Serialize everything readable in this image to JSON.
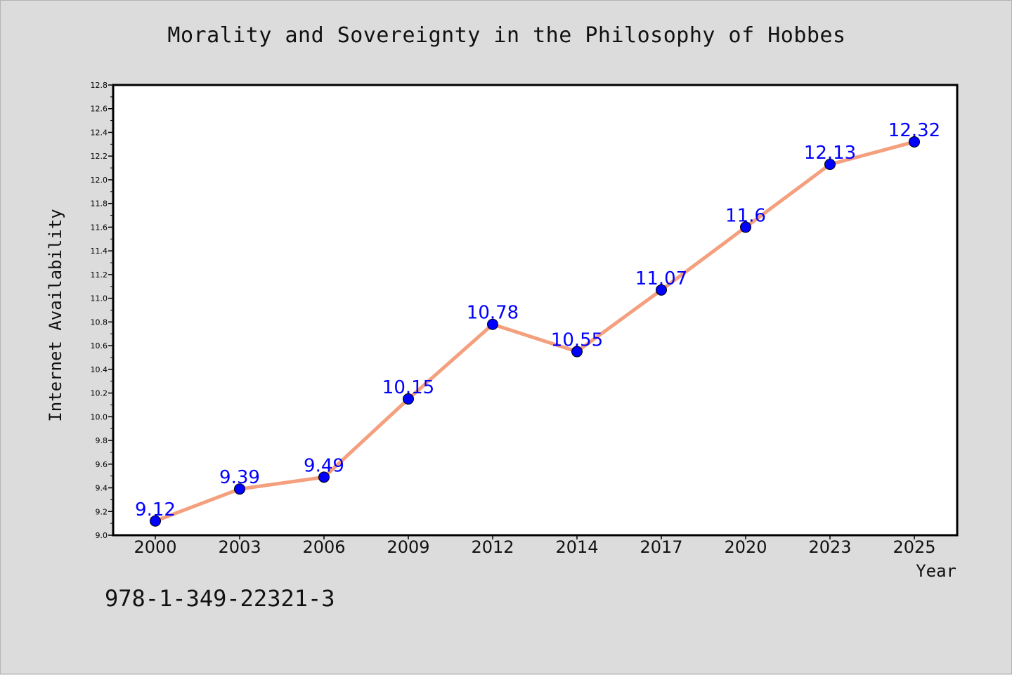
{
  "chart_data": {
    "type": "line",
    "title": "Morality and Sovereignty in the Philosophy of Hobbes",
    "xlabel": "Year",
    "ylabel": "Internet Availability",
    "categories": [
      "2000",
      "2003",
      "2006",
      "2009",
      "2012",
      "2014",
      "2017",
      "2020",
      "2023",
      "2025"
    ],
    "series": [
      {
        "values": [
          9.12,
          9.39,
          9.49,
          10.15,
          10.78,
          10.55,
          11.07,
          11.6,
          12.13,
          12.32
        ],
        "labels": [
          "9.12",
          "9.39",
          "9.49",
          "10.15",
          "10.78",
          "10.55",
          "11.07",
          "11.6",
          "12.13",
          "12.32"
        ],
        "line_color": "#f4a07e",
        "marker_color": "#0000ff"
      }
    ],
    "ylim": [
      9.0,
      12.8
    ],
    "yticks": [
      "9.0",
      "9.2",
      "9.4",
      "9.6",
      "9.8",
      "10.0",
      "10.2",
      "10.4",
      "10.6",
      "10.8",
      "11.0",
      "11.2",
      "11.4",
      "11.6",
      "11.8",
      "12.0",
      "12.2",
      "12.4",
      "12.6",
      "12.8"
    ],
    "grid": false,
    "legend": "none"
  },
  "footer": {
    "isbn": "978-1-349-22321-3"
  },
  "colors": {
    "background": "#dcdcdc",
    "plot_background": "#ffffff",
    "line": "#f4a07e",
    "marker": "#0000ff",
    "data_label": "#0000ff"
  }
}
